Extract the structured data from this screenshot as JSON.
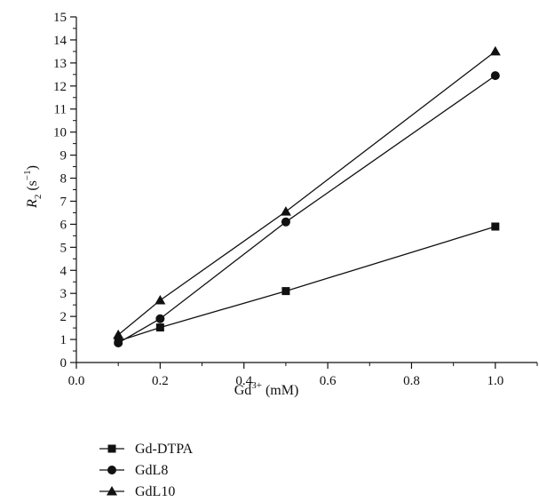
{
  "chart_data": {
    "type": "line",
    "xlabel": {
      "base": "Gd",
      "sup": "3+",
      "unit": " (mM)"
    },
    "ylabel": {
      "italic": "R",
      "sub": "2",
      "unit_open": " (s",
      "sup": "−1",
      "unit_close": ")"
    },
    "xlim": [
      0.0,
      1.1
    ],
    "ylim": [
      0,
      15
    ],
    "x_ticks": [
      "0.0",
      "0.2",
      "0.4",
      "0.6",
      "0.8",
      "1.0"
    ],
    "y_ticks": [
      "0",
      "1",
      "2",
      "3",
      "4",
      "5",
      "6",
      "7",
      "8",
      "9",
      "10",
      "11",
      "12",
      "13",
      "14",
      "15"
    ],
    "grid": false,
    "legend_position": "below",
    "series": [
      {
        "name": "Gd-DTPA",
        "marker": "square",
        "color": "#111111",
        "x": [
          0.1,
          0.2,
          0.5,
          1.0
        ],
        "y": [
          0.93,
          1.52,
          3.1,
          5.9
        ]
      },
      {
        "name": "GdL8",
        "marker": "circle",
        "color": "#111111",
        "x": [
          0.1,
          0.2,
          0.5,
          1.0
        ],
        "y": [
          0.85,
          1.9,
          6.1,
          12.45
        ]
      },
      {
        "name": "GdL10",
        "marker": "triangle",
        "color": "#111111",
        "x": [
          0.1,
          0.2,
          0.5,
          1.0
        ],
        "y": [
          1.2,
          2.7,
          6.55,
          13.5
        ]
      }
    ]
  }
}
